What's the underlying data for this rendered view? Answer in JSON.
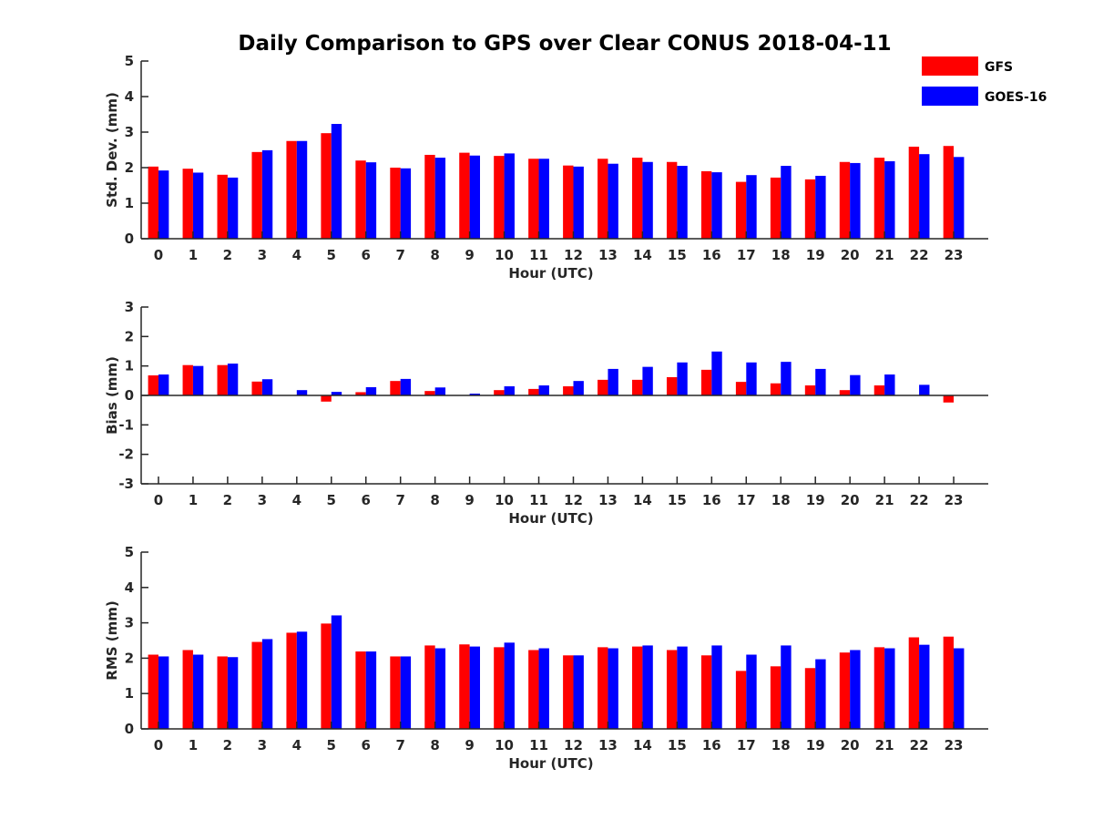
{
  "chart_data": [
    {
      "type": "bar",
      "title": "Daily Comparison to GPS over Clear CONUS 2018-04-11",
      "xlabel": "Hour (UTC)",
      "ylabel": "Std. Dev. (mm)",
      "ylim": [
        0,
        5
      ],
      "yticks": [
        "0",
        "1",
        "2",
        "3",
        "4",
        "5"
      ],
      "categories": [
        "0",
        "1",
        "2",
        "3",
        "4",
        "5",
        "6",
        "7",
        "8",
        "9",
        "10",
        "11",
        "12",
        "13",
        "14",
        "15",
        "16",
        "17",
        "18",
        "19",
        "20",
        "21",
        "22",
        "23"
      ],
      "series": [
        {
          "name": "GFS",
          "color": "#ff0000",
          "values": [
            2.03,
            1.97,
            1.8,
            2.44,
            2.75,
            2.97,
            2.2,
            2.0,
            2.36,
            2.42,
            2.33,
            2.25,
            2.06,
            2.25,
            2.28,
            2.16,
            1.9,
            1.6,
            1.72,
            1.67,
            2.16,
            2.28,
            2.59,
            2.61
          ]
        },
        {
          "name": "GOES-16",
          "color": "#0000ff",
          "values": [
            1.92,
            1.86,
            1.72,
            2.49,
            2.75,
            3.23,
            2.15,
            1.98,
            2.28,
            2.34,
            2.4,
            2.25,
            2.03,
            2.11,
            2.16,
            2.05,
            1.87,
            1.79,
            2.05,
            1.77,
            2.13,
            2.18,
            2.38,
            2.3
          ]
        }
      ]
    },
    {
      "type": "bar",
      "xlabel": "Hour (UTC)",
      "ylabel": "Bias (mm)",
      "ylim": [
        -3,
        3
      ],
      "yticks": [
        "-3",
        "-2",
        "-1",
        "0",
        "1",
        "2",
        "3"
      ],
      "categories": [
        "0",
        "1",
        "2",
        "3",
        "4",
        "5",
        "6",
        "7",
        "8",
        "9",
        "10",
        "11",
        "12",
        "13",
        "14",
        "15",
        "16",
        "17",
        "18",
        "19",
        "20",
        "21",
        "22",
        "23"
      ],
      "series": [
        {
          "name": "GFS",
          "color": "#ff0000",
          "values": [
            0.68,
            1.03,
            1.03,
            0.47,
            0.0,
            -0.21,
            0.11,
            0.49,
            0.15,
            0.0,
            0.18,
            0.22,
            0.31,
            0.53,
            0.53,
            0.62,
            0.87,
            0.46,
            0.41,
            0.34,
            0.18,
            0.34,
            0.0,
            -0.24
          ]
        },
        {
          "name": "GOES-16",
          "color": "#0000ff",
          "values": [
            0.71,
            1.0,
            1.08,
            0.55,
            0.18,
            0.12,
            0.28,
            0.56,
            0.27,
            0.06,
            0.31,
            0.34,
            0.49,
            0.9,
            0.97,
            1.12,
            1.49,
            1.12,
            1.14,
            0.9,
            0.69,
            0.71,
            0.36,
            0.0
          ]
        }
      ]
    },
    {
      "type": "bar",
      "xlabel": "Hour (UTC)",
      "ylabel": "RMS (mm)",
      "ylim": [
        0,
        5
      ],
      "yticks": [
        "0",
        "1",
        "2",
        "3",
        "4",
        "5"
      ],
      "categories": [
        "0",
        "1",
        "2",
        "3",
        "4",
        "5",
        "6",
        "7",
        "8",
        "9",
        "10",
        "11",
        "12",
        "13",
        "14",
        "15",
        "16",
        "17",
        "18",
        "19",
        "20",
        "21",
        "22",
        "23"
      ],
      "series": [
        {
          "name": "GFS",
          "color": "#ff0000",
          "values": [
            2.1,
            2.23,
            2.05,
            2.46,
            2.72,
            2.98,
            2.19,
            2.05,
            2.36,
            2.39,
            2.31,
            2.23,
            2.08,
            2.31,
            2.33,
            2.23,
            2.08,
            1.64,
            1.77,
            1.72,
            2.16,
            2.31,
            2.59,
            2.61
          ]
        },
        {
          "name": "GOES-16",
          "color": "#0000ff",
          "values": [
            2.05,
            2.1,
            2.03,
            2.54,
            2.75,
            3.21,
            2.19,
            2.05,
            2.28,
            2.33,
            2.44,
            2.28,
            2.08,
            2.28,
            2.36,
            2.33,
            2.36,
            2.1,
            2.36,
            1.97,
            2.23,
            2.28,
            2.38,
            2.28
          ]
        }
      ]
    }
  ],
  "legend": [
    {
      "label": "GFS",
      "color": "#ff0000"
    },
    {
      "label": "GOES-16",
      "color": "#0000ff"
    }
  ]
}
